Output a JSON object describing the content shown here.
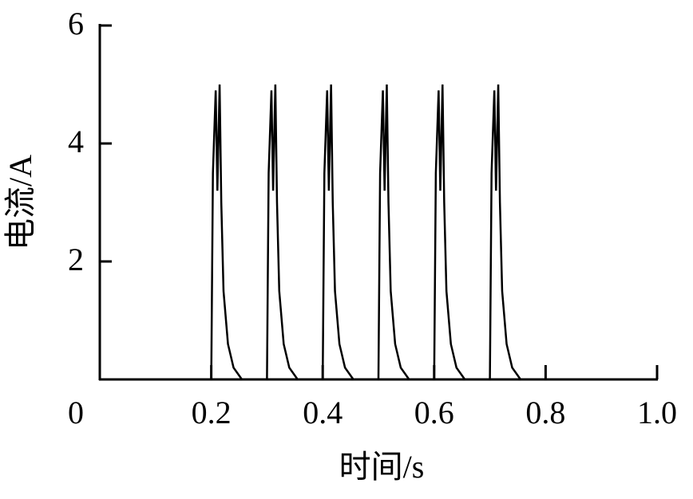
{
  "chart_data": {
    "type": "line",
    "xlabel": "时间/s",
    "ylabel": "电流/A",
    "xlim": [
      0,
      1
    ],
    "ylim": [
      0,
      6
    ],
    "xticks": [
      0,
      0.2,
      0.4,
      0.6,
      0.8,
      {
        "value": 1,
        "label": "1.0"
      }
    ],
    "yticks": [
      2,
      4,
      6
    ],
    "color": "#000000",
    "x": [
      0,
      0.2,
      0.203,
      0.208,
      0.211,
      0.215,
      0.218,
      0.222,
      0.23,
      0.24,
      0.255,
      0.3,
      0.303,
      0.308,
      0.311,
      0.315,
      0.318,
      0.322,
      0.33,
      0.34,
      0.355,
      0.4,
      0.403,
      0.408,
      0.411,
      0.415,
      0.418,
      0.422,
      0.43,
      0.44,
      0.455,
      0.5,
      0.503,
      0.508,
      0.511,
      0.515,
      0.518,
      0.522,
      0.53,
      0.54,
      0.555,
      0.6,
      0.603,
      0.608,
      0.611,
      0.615,
      0.618,
      0.622,
      0.63,
      0.64,
      0.655,
      0.7,
      0.703,
      0.708,
      0.711,
      0.715,
      0.718,
      0.722,
      0.73,
      0.74,
      0.755,
      1
    ],
    "values": [
      0,
      0,
      3.5,
      4.9,
      3.2,
      5,
      3,
      1.5,
      0.6,
      0.2,
      0,
      0,
      3.5,
      4.9,
      3.2,
      5,
      3,
      1.5,
      0.6,
      0.2,
      0,
      0,
      3.5,
      4.9,
      3.2,
      5,
      3,
      1.5,
      0.6,
      0.2,
      0,
      0,
      3.5,
      4.9,
      3.2,
      5,
      3,
      1.5,
      0.6,
      0.2,
      0,
      0,
      3.5,
      4.9,
      3.2,
      5,
      3,
      1.5,
      0.6,
      0.2,
      0,
      0,
      3.5,
      4.9,
      3.2,
      5,
      3,
      1.5,
      0.6,
      0.2,
      0,
      0
    ]
  }
}
